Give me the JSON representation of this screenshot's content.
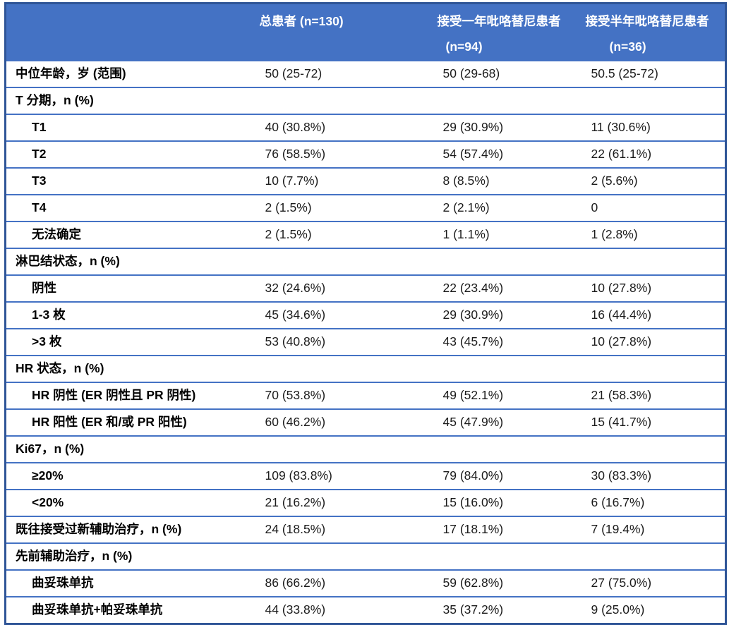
{
  "colors": {
    "header_bg": "#4472C4",
    "grid_line": "#4472C4",
    "outer_border": "#2F5597",
    "header_text": "#FFFFFF",
    "label_text": "#000000",
    "value_text": "#1B1B1B"
  },
  "header": {
    "col1": "",
    "col2_line1": "总患者 (n=130)",
    "col2_line2": "",
    "col3_line1": "接受一年吡咯替尼患者",
    "col3_line2": "(n=94)",
    "col4_line1": "接受半年吡咯替尼患者",
    "col4_line2": "(n=36)"
  },
  "rows": [
    {
      "label": "中位年龄，岁 (范围)",
      "style": "top",
      "values": [
        "50 (25-72)",
        "50 (29-68)",
        "50.5 (25-72)"
      ]
    },
    {
      "label": "T 分期，n (%)",
      "style": "section",
      "values": [
        "",
        "",
        ""
      ]
    },
    {
      "label": "T1",
      "style": "sub",
      "values": [
        "40 (30.8%)",
        "29 (30.9%)",
        "11 (30.6%)"
      ]
    },
    {
      "label": "T2",
      "style": "sub",
      "values": [
        "76 (58.5%)",
        "54 (57.4%)",
        "22 (61.1%)"
      ]
    },
    {
      "label": "T3",
      "style": "sub",
      "values": [
        "10 (7.7%)",
        "8 (8.5%)",
        "2 (5.6%)"
      ]
    },
    {
      "label": "T4",
      "style": "sub",
      "values": [
        "2 (1.5%)",
        "2 (2.1%)",
        "0"
      ]
    },
    {
      "label": "无法确定",
      "style": "sub",
      "values": [
        "2 (1.5%)",
        "1 (1.1%)",
        "1 (2.8%)"
      ]
    },
    {
      "label": "淋巴结状态，n (%)",
      "style": "section",
      "values": [
        "",
        "",
        ""
      ]
    },
    {
      "label": "阴性",
      "style": "sub",
      "values": [
        "32 (24.6%)",
        "22 (23.4%)",
        "10 (27.8%)"
      ]
    },
    {
      "label": "1-3 枚",
      "style": "sub",
      "values": [
        "45 (34.6%)",
        "29 (30.9%)",
        "16 (44.4%)"
      ]
    },
    {
      "label": ">3 枚",
      "style": "sub",
      "values": [
        "53 (40.8%)",
        "43 (45.7%)",
        "10 (27.8%)"
      ]
    },
    {
      "label": "HR 状态，n (%)",
      "style": "section",
      "values": [
        "",
        "",
        ""
      ]
    },
    {
      "label": "HR 阴性 (ER 阴性且 PR 阴性)",
      "style": "sub",
      "values": [
        "70 (53.8%)",
        "49 (52.1%)",
        "21 (58.3%)"
      ]
    },
    {
      "label": "HR 阳性 (ER 和/或 PR 阳性)",
      "style": "sub",
      "values": [
        "60 (46.2%)",
        "45 (47.9%)",
        "15 (41.7%)"
      ]
    },
    {
      "label": "Ki67，n (%)",
      "style": "section",
      "values": [
        "",
        "",
        ""
      ]
    },
    {
      "label": "≥20%",
      "style": "sub",
      "values": [
        "109 (83.8%)",
        "79 (84.0%)",
        "30 (83.3%)"
      ]
    },
    {
      "label": "<20%",
      "style": "sub",
      "values": [
        "21 (16.2%)",
        "15 (16.0%)",
        "6 (16.7%)"
      ]
    },
    {
      "label": "既往接受过新辅助治疗，n (%)",
      "style": "top",
      "values": [
        "24 (18.5%)",
        "17 (18.1%)",
        "7 (19.4%)"
      ]
    },
    {
      "label": "先前辅助治疗，n (%)",
      "style": "section",
      "values": [
        "",
        "",
        ""
      ]
    },
    {
      "label": "曲妥珠单抗",
      "style": "sub",
      "values": [
        "86 (66.2%)",
        "59 (62.8%)",
        "27 (75.0%)"
      ]
    },
    {
      "label": "曲妥珠单抗+帕妥珠单抗",
      "style": "sub",
      "values": [
        "44 (33.8%)",
        "35 (37.2%)",
        "9 (25.0%)"
      ]
    }
  ]
}
